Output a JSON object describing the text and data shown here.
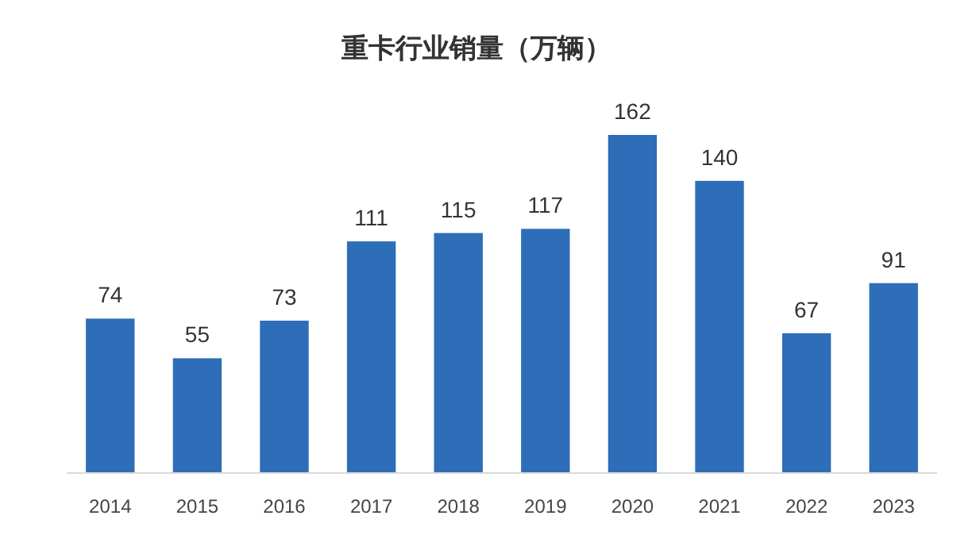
{
  "chart_data": {
    "type": "bar",
    "title": "重卡行业销量（万辆）",
    "categories": [
      "2014",
      "2015",
      "2016",
      "2017",
      "2018",
      "2019",
      "2020",
      "2021",
      "2022",
      "2023"
    ],
    "values": [
      74,
      55,
      73,
      111,
      115,
      117,
      162,
      140,
      67,
      91
    ],
    "color": "#2e6db8",
    "data_labels": true
  }
}
